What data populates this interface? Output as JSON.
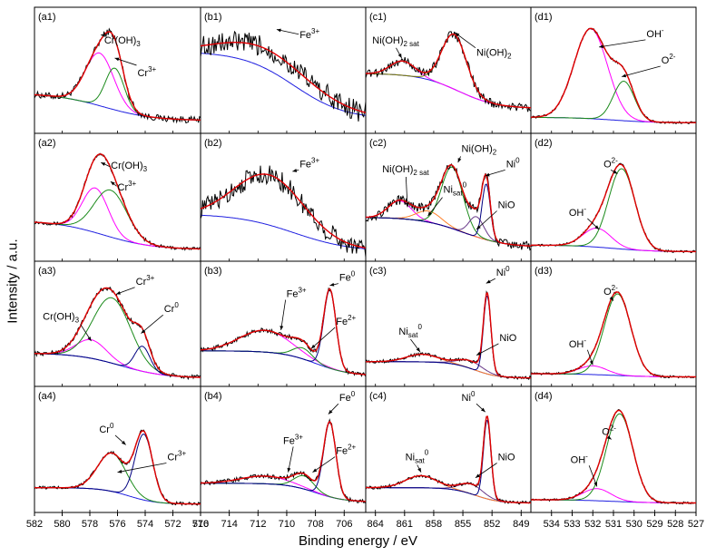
{
  "figure": {
    "ylabel": "Intensity / a.u.",
    "xlabel": "Binding energy / eV"
  },
  "colors": {
    "raw": "#000000",
    "envelope": "#e00000",
    "background": "#1f1fe0",
    "green": "#1a8a1a",
    "magenta": "#ff00ff",
    "navy": "#000080",
    "orange": "#ff7f27",
    "olive": "#7a7a00",
    "purple": "#6a3a8a"
  },
  "columns": [
    {
      "key": "a",
      "xlim": [
        582,
        570
      ],
      "ticks": [
        582,
        580,
        578,
        576,
        574,
        572,
        570
      ]
    },
    {
      "key": "b",
      "xlim": [
        716,
        704.5
      ],
      "ticks": [
        716,
        714,
        712,
        710,
        708,
        706
      ]
    },
    {
      "key": "c",
      "xlim": [
        865,
        848
      ],
      "ticks": [
        864,
        861,
        858,
        855,
        852,
        849
      ]
    },
    {
      "key": "d",
      "xlim": [
        535,
        527
      ],
      "ticks": [
        534,
        533,
        532,
        531,
        530,
        529,
        528,
        527
      ]
    }
  ],
  "chart_data": [
    {
      "id": "a1",
      "type": "line",
      "title": "(a1)",
      "xlim": [
        582,
        570
      ],
      "background": {
        "type": "sigmoid",
        "left": 0.3,
        "right": 0.05,
        "center": 577,
        "width": 1.8
      },
      "peaks": [
        {
          "name": "Cr(OH)3",
          "center": 577.3,
          "fwhm": 2.4,
          "height": 0.48,
          "color": "magenta"
        },
        {
          "name": "Cr3+",
          "center": 576.2,
          "fwhm": 1.6,
          "height": 0.38,
          "color": "green"
        }
      ],
      "noise": 0.03,
      "annotations": [
        {
          "text": "Cr(OH)",
          "sub": "3",
          "sup": "",
          "lx": 0.42,
          "ly": 0.2,
          "ax": 577.2,
          "ay": 0.83
        },
        {
          "text": "Cr",
          "sub": "",
          "sup": "3+",
          "lx": 0.62,
          "ly": 0.46,
          "ax": 576.2,
          "ay": 0.62
        }
      ]
    },
    {
      "id": "a2",
      "type": "line",
      "title": "(a2)",
      "xlim": [
        582,
        570
      ],
      "background": {
        "type": "sigmoid",
        "left": 0.3,
        "right": 0.04,
        "center": 577,
        "width": 1.8
      },
      "peaks": [
        {
          "name": "Cr(OH)3",
          "center": 577.6,
          "fwhm": 2.2,
          "height": 0.4,
          "color": "magenta"
        },
        {
          "name": "Cr3+",
          "center": 576.5,
          "fwhm": 2.8,
          "height": 0.42,
          "color": "green"
        }
      ],
      "noise": 0.015,
      "annotations": [
        {
          "text": "Cr(OH)",
          "sub": "3",
          "sup": "",
          "lx": 0.46,
          "ly": 0.19,
          "ax": 577.2,
          "ay": 0.82
        },
        {
          "text": "Cr",
          "sub": "",
          "sup": "3+",
          "lx": 0.5,
          "ly": 0.36,
          "ax": 576.5,
          "ay": 0.65
        }
      ]
    },
    {
      "id": "a3",
      "type": "line",
      "title": "(a3)",
      "xlim": [
        582,
        570
      ],
      "background": {
        "type": "sigmoid",
        "left": 0.24,
        "right": 0.01,
        "center": 575.8,
        "width": 1.6
      },
      "peaks": [
        {
          "name": "Cr(OH)3",
          "center": 577.9,
          "fwhm": 2.6,
          "height": 0.17,
          "color": "magenta"
        },
        {
          "name": "Cr3+",
          "center": 576.4,
          "fwhm": 3.2,
          "height": 0.6,
          "color": "green"
        },
        {
          "name": "Cr0",
          "center": 574.2,
          "fwhm": 1.3,
          "height": 0.23,
          "color": "navy"
        }
      ],
      "noise": 0.02,
      "annotations": [
        {
          "text": "Cr",
          "sub": "",
          "sup": "3+",
          "lx": 0.61,
          "ly": 0.1,
          "ax": 576.1,
          "ay": 0.78
        },
        {
          "text": "Cr(OH)",
          "sub": "3",
          "sup": "",
          "lx": 0.05,
          "ly": 0.38,
          "ax": 577.9,
          "ay": 0.35
        },
        {
          "text": "Cr",
          "sub": "",
          "sup": "0",
          "lx": 0.78,
          "ly": 0.32,
          "ax": 574.3,
          "ay": 0.42
        }
      ]
    },
    {
      "id": "a4",
      "type": "line",
      "title": "(a4)",
      "xlim": [
        582,
        570
      ],
      "background": {
        "type": "sigmoid",
        "left": 0.16,
        "right": 0.01,
        "center": 575.2,
        "width": 1.0
      },
      "peaks": [
        {
          "name": "Cr3+",
          "center": 576.4,
          "fwhm": 2.4,
          "height": 0.35,
          "color": "green"
        },
        {
          "name": "Cr0",
          "center": 574.1,
          "fwhm": 1.5,
          "height": 0.6,
          "color": "navy"
        }
      ],
      "noise": 0.015,
      "annotations": [
        {
          "text": "Cr",
          "sub": "",
          "sup": "0",
          "lx": 0.39,
          "ly": 0.28,
          "ax": 575.4,
          "ay": 0.55
        },
        {
          "text": "Cr",
          "sub": "",
          "sup": "3+",
          "lx": 0.8,
          "ly": 0.5,
          "ax": 576.0,
          "ay": 0.3
        }
      ]
    },
    {
      "id": "b1",
      "type": "line",
      "title": "(b1)",
      "xlim": [
        716,
        704.5
      ],
      "background": {
        "type": "sigmoid",
        "left": 0.68,
        "right": 0.06,
        "center": 709.5,
        "width": 1.8
      },
      "peaks": [
        {
          "name": "Fe3+ envelope",
          "center": 711.2,
          "fwhm": 8.0,
          "height": 0.18,
          "color": "magenta"
        }
      ],
      "noise": 0.1,
      "annotations": [
        {
          "text": "Fe",
          "sub": "",
          "sup": "3+",
          "lx": 0.6,
          "ly": 0.16,
          "ax": 710.7,
          "ay": 0.88
        }
      ]
    },
    {
      "id": "b2",
      "type": "line",
      "title": "(b2)",
      "xlim": [
        716,
        704.5
      ],
      "background": {
        "type": "sigmoid",
        "left": 0.36,
        "right": 0.02,
        "center": 709.5,
        "width": 2.0
      },
      "peaks": [
        {
          "name": "Fe3+ envelope",
          "center": 711.2,
          "fwhm": 5.6,
          "height": 0.45,
          "color": "magenta"
        }
      ],
      "noise": 0.09,
      "annotations": [
        {
          "text": "Fe",
          "sub": "",
          "sup": "3+",
          "lx": 0.6,
          "ly": 0.18,
          "ax": 709.6,
          "ay": 0.74
        }
      ]
    },
    {
      "id": "b3",
      "type": "line",
      "title": "(b3)",
      "xlim": [
        716,
        704.5
      ],
      "background": {
        "type": "sigmoid",
        "left": 0.26,
        "right": 0.03,
        "center": 708.0,
        "width": 1.2
      },
      "peaks": [
        {
          "name": "Fe3+",
          "center": 711.5,
          "fwhm": 4.2,
          "height": 0.2,
          "color": "magenta"
        },
        {
          "name": "Fe2+",
          "center": 708.9,
          "fwhm": 1.6,
          "height": 0.1,
          "color": "green"
        },
        {
          "name": "Fe0",
          "center": 707.0,
          "fwhm": 1.0,
          "height": 0.72,
          "color": "navy"
        }
      ],
      "noise": 0.02,
      "annotations": [
        {
          "text": "Fe",
          "sub": "",
          "sup": "0",
          "lx": 0.84,
          "ly": 0.07,
          "ax": 707.0,
          "ay": 0.86
        },
        {
          "text": "Fe",
          "sub": "",
          "sup": "3+",
          "lx": 0.52,
          "ly": 0.2,
          "ax": 710.4,
          "ay": 0.45
        },
        {
          "text": "Fe",
          "sub": "",
          "sup": "2+",
          "lx": 0.82,
          "ly": 0.42,
          "ax": 708.3,
          "ay": 0.28
        }
      ]
    },
    {
      "id": "b4",
      "type": "line",
      "title": "(b4)",
      "xlim": [
        716,
        704.5
      ],
      "background": {
        "type": "sigmoid",
        "left": 0.2,
        "right": 0.03,
        "center": 708.0,
        "width": 1.0
      },
      "peaks": [
        {
          "name": "Fe3+",
          "center": 711.5,
          "fwhm": 4.0,
          "height": 0.07,
          "color": "magenta"
        },
        {
          "name": "Fe2+",
          "center": 708.8,
          "fwhm": 1.6,
          "height": 0.12,
          "color": "green"
        },
        {
          "name": "Fe0",
          "center": 707.0,
          "fwhm": 1.0,
          "height": 0.68,
          "color": "navy"
        }
      ],
      "noise": 0.02,
      "annotations": [
        {
          "text": "Fe",
          "sub": "",
          "sup": "0",
          "lx": 0.84,
          "ly": 0.03,
          "ax": 707.1,
          "ay": 0.83
        },
        {
          "text": "Fe",
          "sub": "",
          "sup": "3+",
          "lx": 0.5,
          "ly": 0.37,
          "ax": 709.9,
          "ay": 0.3
        },
        {
          "text": "Fe",
          "sub": "",
          "sup": "2+",
          "lx": 0.82,
          "ly": 0.45,
          "ax": 708.2,
          "ay": 0.3
        }
      ]
    },
    {
      "id": "c1",
      "type": "line",
      "title": "(c1)",
      "xlim": [
        865,
        848
      ],
      "background": {
        "type": "sigmoid",
        "left": 0.48,
        "right": 0.16,
        "center": 855.5,
        "width": 2.0
      },
      "peaks": [
        {
          "name": "Ni(OH)2 sat",
          "center": 861.2,
          "fwhm": 3.0,
          "height": 0.13,
          "color": "magenta"
        },
        {
          "name": "Ni(OH)2",
          "center": 855.9,
          "fwhm": 3.0,
          "height": 0.5,
          "color": "olive"
        }
      ],
      "noise": 0.04,
      "annotations": [
        {
          "text": "Ni(OH)",
          "sub": "2 sat",
          "sup": "",
          "lx": 0.04,
          "ly": 0.2,
          "ax": 861.3,
          "ay": 0.62
        },
        {
          "text": "Ni(OH)",
          "sub": "2",
          "sup": "",
          "lx": 0.67,
          "ly": 0.3,
          "ax": 855.8,
          "ay": 0.85
        }
      ]
    },
    {
      "id": "c2",
      "type": "line",
      "title": "(c2)",
      "xlim": [
        865,
        848
      ],
      "background": {
        "type": "sigmoid",
        "left": 0.33,
        "right": 0.06,
        "center": 855.0,
        "width": 2.2
      },
      "peaks": [
        {
          "name": "Ni(OH)2 sat",
          "center": 861.5,
          "fwhm": 2.8,
          "height": 0.16,
          "color": "magenta"
        },
        {
          "name": "Ni0 sat",
          "center": 858.5,
          "fwhm": 3.0,
          "height": 0.1,
          "color": "orange"
        },
        {
          "name": "Ni(OH)2",
          "center": 856.1,
          "fwhm": 2.6,
          "height": 0.55,
          "color": "green"
        },
        {
          "name": "NiO",
          "center": 853.6,
          "fwhm": 1.8,
          "height": 0.18,
          "color": "purple"
        },
        {
          "name": "Ni0",
          "center": 852.6,
          "fwhm": 1.0,
          "height": 0.5,
          "color": "navy"
        }
      ],
      "noise": 0.04,
      "annotations": [
        {
          "text": "Ni(OH)",
          "sub": "2",
          "sup": "",
          "lx": 0.58,
          "ly": 0.06,
          "ax": 855.5,
          "ay": 0.82
        },
        {
          "text": "Ni",
          "sub": "",
          "sup": "0",
          "lx": 0.85,
          "ly": 0.18,
          "ax": 852.7,
          "ay": 0.7
        },
        {
          "text": "Ni(OH)",
          "sub": "2 sat",
          "sup": "",
          "lx": 0.1,
          "ly": 0.22,
          "ax": 860.7,
          "ay": 0.42
        },
        {
          "text": "Ni",
          "sub": "sat",
          "sup": "0",
          "lx": 0.47,
          "ly": 0.38,
          "ax": 858.6,
          "ay": 0.34
        },
        {
          "text": "NiO",
          "sub": "",
          "sup": "",
          "lx": 0.8,
          "ly": 0.5,
          "ax": 853.6,
          "ay": 0.22
        }
      ]
    },
    {
      "id": "c3",
      "type": "line",
      "title": "(c3)",
      "xlim": [
        865,
        848
      ],
      "background": {
        "type": "sigmoid",
        "left": 0.16,
        "right": 0.01,
        "center": 853.8,
        "width": 1.2
      },
      "peaks": [
        {
          "name": "Ni0 sat",
          "center": 859.2,
          "fwhm": 3.8,
          "height": 0.07,
          "color": "orange"
        },
        {
          "name": "NiO",
          "center": 854.2,
          "fwhm": 3.0,
          "height": 0.07,
          "color": "purple"
        },
        {
          "name": "Ni0",
          "center": 852.5,
          "fwhm": 0.9,
          "height": 0.72,
          "color": "navy"
        }
      ],
      "noise": 0.015,
      "annotations": [
        {
          "text": "Ni",
          "sub": "",
          "sup": "0",
          "lx": 0.79,
          "ly": 0.03,
          "ax": 852.6,
          "ay": 0.88
        },
        {
          "text": "Ni",
          "sub": "sat",
          "sup": "0",
          "lx": 0.2,
          "ly": 0.5,
          "ax": 859.4,
          "ay": 0.25
        },
        {
          "text": "NiO",
          "sub": "",
          "sup": "",
          "lx": 0.81,
          "ly": 0.55,
          "ax": 853.6,
          "ay": 0.22
        }
      ]
    },
    {
      "id": "c4",
      "type": "line",
      "title": "(c4)",
      "xlim": [
        865,
        848
      ],
      "background": {
        "type": "sigmoid",
        "left": 0.16,
        "right": 0.02,
        "center": 853.7,
        "width": 1.2
      },
      "peaks": [
        {
          "name": "Ni0 sat",
          "center": 859.3,
          "fwhm": 3.8,
          "height": 0.11,
          "color": "orange"
        },
        {
          "name": "NiO",
          "center": 854.1,
          "fwhm": 2.8,
          "height": 0.09,
          "color": "purple"
        },
        {
          "name": "Ni0",
          "center": 852.5,
          "fwhm": 0.9,
          "height": 0.72,
          "color": "navy"
        }
      ],
      "noise": 0.015,
      "annotations": [
        {
          "text": "Ni",
          "sub": "",
          "sup": "0",
          "lx": 0.58,
          "ly": 0.03,
          "ax": 852.7,
          "ay": 0.85
        },
        {
          "text": "Ni",
          "sub": "sat",
          "sup": "0",
          "lx": 0.24,
          "ly": 0.5,
          "ax": 859.3,
          "ay": 0.3
        },
        {
          "text": "NiO",
          "sub": "",
          "sup": "",
          "lx": 0.8,
          "ly": 0.5,
          "ax": 853.7,
          "ay": 0.25
        }
      ]
    },
    {
      "id": "d1",
      "type": "line",
      "title": "(d1)",
      "xlim": [
        535,
        527
      ],
      "background": {
        "type": "sigmoid",
        "left": 0.08,
        "right": 0.03,
        "center": 531,
        "width": 1.0
      },
      "peaks": [
        {
          "name": "OH-",
          "center": 532.1,
          "fwhm": 1.9,
          "height": 0.82,
          "color": "magenta"
        },
        {
          "name": "O2-",
          "center": 530.5,
          "fwhm": 1.2,
          "height": 0.36,
          "color": "green"
        }
      ],
      "noise": 0.01,
      "annotations": [
        {
          "text": "OH",
          "sub": "",
          "sup": "-",
          "lx": 0.7,
          "ly": 0.15,
          "ax": 531.7,
          "ay": 0.72
        },
        {
          "text": "O",
          "sub": "",
          "sup": "2-",
          "lx": 0.79,
          "ly": 0.36,
          "ax": 530.6,
          "ay": 0.45
        }
      ]
    },
    {
      "id": "d2",
      "type": "line",
      "title": "(d2)",
      "xlim": [
        535,
        527
      ],
      "background": {
        "type": "sigmoid",
        "left": 0.08,
        "right": 0.02,
        "center": 531,
        "width": 1.0
      },
      "peaks": [
        {
          "name": "OH-",
          "center": 531.8,
          "fwhm": 1.6,
          "height": 0.17,
          "color": "magenta"
        },
        {
          "name": "O2-",
          "center": 530.6,
          "fwhm": 1.5,
          "height": 0.72,
          "color": "green"
        }
      ],
      "noise": 0.01,
      "annotations": [
        {
          "text": "O",
          "sub": "",
          "sup": "2-",
          "lx": 0.44,
          "ly": 0.18,
          "ax": 530.8,
          "ay": 0.72
        },
        {
          "text": "OH",
          "sub": "",
          "sup": "-",
          "lx": 0.23,
          "ly": 0.56,
          "ax": 531.7,
          "ay": 0.22
        }
      ]
    },
    {
      "id": "d3",
      "type": "line",
      "title": "(d3)",
      "xlim": [
        535,
        527
      ],
      "background": {
        "type": "sigmoid",
        "left": 0.05,
        "right": 0.02,
        "center": 531,
        "width": 1.0
      },
      "peaks": [
        {
          "name": "OH-",
          "center": 532.0,
          "fwhm": 1.6,
          "height": 0.08,
          "color": "magenta"
        },
        {
          "name": "O2-",
          "center": 530.8,
          "fwhm": 1.5,
          "height": 0.75,
          "color": "green"
        }
      ],
      "noise": 0.01,
      "annotations": [
        {
          "text": "O",
          "sub": "",
          "sup": "2-",
          "lx": 0.44,
          "ly": 0.18,
          "ax": 531.0,
          "ay": 0.72
        },
        {
          "text": "OH",
          "sub": "",
          "sup": "-",
          "lx": 0.23,
          "ly": 0.6,
          "ax": 532.0,
          "ay": 0.13
        }
      ]
    },
    {
      "id": "d4",
      "type": "line",
      "title": "(d4)",
      "xlim": [
        535,
        527
      ],
      "background": {
        "type": "sigmoid",
        "left": 0.05,
        "right": 0.02,
        "center": 531,
        "width": 1.0
      },
      "peaks": [
        {
          "name": "OH-",
          "center": 531.8,
          "fwhm": 1.6,
          "height": 0.11,
          "color": "magenta"
        },
        {
          "name": "O2-",
          "center": 530.7,
          "fwhm": 1.5,
          "height": 0.8,
          "color": "green"
        }
      ],
      "noise": 0.01,
      "annotations": [
        {
          "text": "O",
          "sub": "",
          "sup": "2-",
          "lx": 0.43,
          "ly": 0.3,
          "ax": 531.1,
          "ay": 0.6
        },
        {
          "text": "OH",
          "sub": "",
          "sup": "-",
          "lx": 0.24,
          "ly": 0.52,
          "ax": 531.8,
          "ay": 0.17
        }
      ]
    }
  ]
}
